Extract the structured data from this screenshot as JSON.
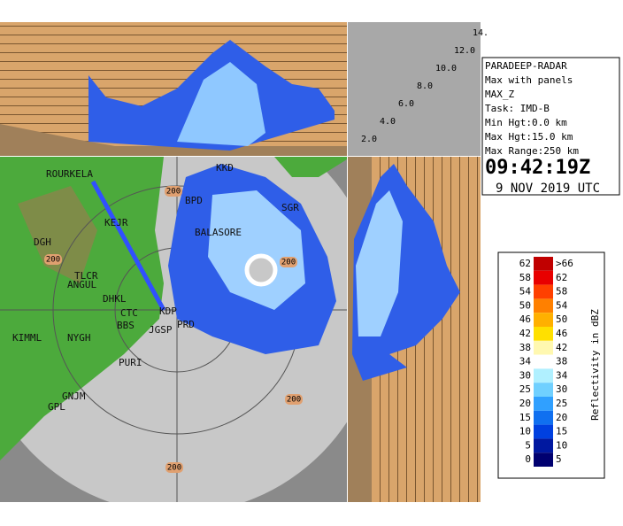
{
  "info": {
    "lines": [
      "PARADEEP-RADAR",
      "Max with panels",
      "MAX_Z",
      "Task: IMD-B",
      "Min Hgt:0.0 km",
      "Max Hgt:15.0 km",
      "Max Range:250 km"
    ],
    "time": "09:42:19Z",
    "date": "9 NOV 2019 UTC"
  },
  "height_labels": [
    "2.0",
    "4.0",
    "6.0",
    "8.0",
    "10.0",
    "12.0",
    "14."
  ],
  "stations": [
    "ROURKELA",
    "KKD",
    "BPD",
    "KEJR",
    "SGR",
    "BALASORE",
    "DGH",
    "TLCR",
    "ANGUL",
    "DHKL",
    "CTC",
    "KDP",
    "KIMML",
    "NYGH",
    "BBS",
    "JGSP",
    "PRD",
    "PURI",
    "GNJM",
    "GPL"
  ],
  "range_labels": [
    "200",
    "200",
    "200",
    "200",
    "200"
  ],
  "legend": {
    "title": "Reflectivity in dBZ",
    "rows": [
      {
        "low": 62,
        "high": ">66",
        "color": "#c00000"
      },
      {
        "low": 58,
        "high": "62",
        "color": "#e80000"
      },
      {
        "low": 54,
        "high": "58",
        "color": "#ff4000"
      },
      {
        "low": 50,
        "high": "54",
        "color": "#ff8000"
      },
      {
        "low": 46,
        "high": "50",
        "color": "#ffb000"
      },
      {
        "low": 42,
        "high": "46",
        "color": "#ffe000"
      },
      {
        "low": 38,
        "high": "42",
        "color": "#fff8b0"
      },
      {
        "low": 34,
        "high": "38",
        "color": "#ffffff"
      },
      {
        "low": 30,
        "high": "34",
        "color": "#b0f0ff"
      },
      {
        "low": 25,
        "high": "30",
        "color": "#70d0ff"
      },
      {
        "low": 20,
        "high": "25",
        "color": "#30a0ff"
      },
      {
        "low": 15,
        "high": "20",
        "color": "#1070f0"
      },
      {
        "low": 10,
        "high": "15",
        "color": "#0040e0"
      },
      {
        "low": 5,
        "high": "10",
        "color": "#0018a0"
      },
      {
        "low": 0,
        "high": "5",
        "color": "#000070"
      }
    ]
  }
}
